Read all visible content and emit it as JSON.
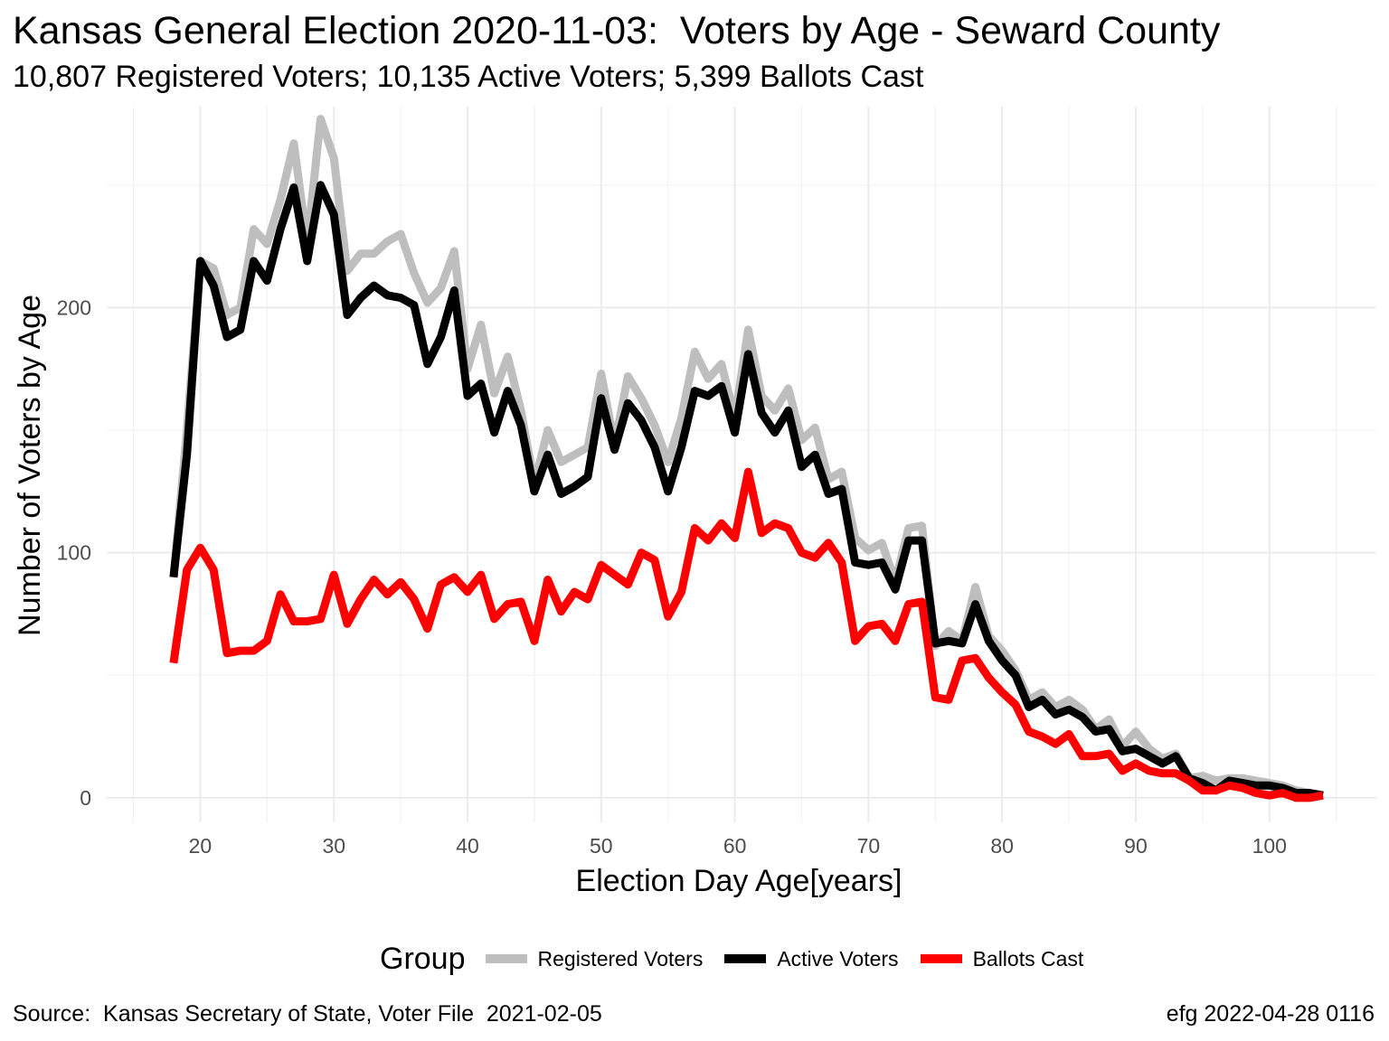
{
  "title": "Kansas General Election 2020-11-03:  Voters by Age - Seward County",
  "subtitle": "10,807 Registered Voters; 10,135 Active Voters; 5,399 Ballots Cast",
  "caption_left": "Source:  Kansas Secretary of State, Voter File  2021-02-05",
  "caption_right": "efg 2022-04-28 0116",
  "legend": {
    "title": "Group"
  },
  "chart_data": {
    "type": "line",
    "xlabel": "Election Day Age[years]",
    "ylabel": "Number of Voters by Age",
    "xlim": [
      13,
      108
    ],
    "ylim": [
      -10,
      282
    ],
    "xticks": [
      20,
      30,
      40,
      50,
      60,
      70,
      80,
      90,
      100
    ],
    "yticks": [
      0,
      100,
      200
    ],
    "grid": true,
    "legend_position": "bottom",
    "x": [
      18,
      19,
      20,
      21,
      22,
      23,
      24,
      25,
      26,
      27,
      28,
      29,
      30,
      31,
      32,
      33,
      34,
      35,
      36,
      37,
      38,
      39,
      40,
      41,
      42,
      43,
      44,
      45,
      46,
      47,
      48,
      49,
      50,
      51,
      52,
      53,
      54,
      55,
      56,
      57,
      58,
      59,
      60,
      61,
      62,
      63,
      64,
      65,
      66,
      67,
      68,
      69,
      70,
      71,
      72,
      73,
      74,
      75,
      76,
      77,
      78,
      79,
      80,
      81,
      82,
      83,
      84,
      85,
      86,
      87,
      88,
      89,
      90,
      91,
      92,
      93,
      94,
      95,
      96,
      97,
      98,
      99,
      100,
      101,
      102,
      103,
      104
    ],
    "series": [
      {
        "name": "Registered Voters",
        "color": "#bebebe",
        "values": [
          90,
          150,
          219,
          216,
          197,
          200,
          232,
          226,
          244,
          267,
          226,
          277,
          261,
          215,
          222,
          222,
          227,
          230,
          214,
          202,
          208,
          223,
          175,
          193,
          165,
          180,
          158,
          128,
          150,
          137,
          140,
          143,
          173,
          144,
          172,
          163,
          152,
          137,
          155,
          182,
          171,
          177,
          155,
          191,
          164,
          158,
          167,
          146,
          151,
          130,
          133,
          106,
          101,
          104,
          88,
          110,
          111,
          62,
          68,
          64,
          86,
          66,
          60,
          52,
          40,
          43,
          37,
          40,
          36,
          28,
          32,
          21,
          27,
          20,
          16,
          18,
          8,
          9,
          7,
          8,
          8,
          7,
          6,
          5,
          3,
          2,
          1
        ]
      },
      {
        "name": "Active Voters",
        "color": "#000000",
        "values": [
          90,
          140,
          219,
          209,
          188,
          191,
          219,
          211,
          232,
          249,
          219,
          250,
          238,
          197,
          204,
          209,
          205,
          204,
          201,
          177,
          188,
          207,
          164,
          169,
          149,
          166,
          152,
          125,
          140,
          124,
          127,
          131,
          163,
          142,
          161,
          154,
          143,
          125,
          143,
          166,
          164,
          168,
          149,
          181,
          157,
          149,
          158,
          135,
          140,
          124,
          126,
          96,
          95,
          96,
          85,
          105,
          105,
          63,
          64,
          63,
          79,
          64,
          56,
          50,
          37,
          40,
          34,
          36,
          33,
          27,
          28,
          19,
          20,
          17,
          14,
          17,
          8,
          6,
          3,
          7,
          6,
          5,
          5,
          4,
          2,
          2,
          1
        ]
      },
      {
        "name": "Ballots Cast",
        "color": "#ff0000",
        "values": [
          55,
          93,
          102,
          93,
          59,
          60,
          60,
          64,
          83,
          72,
          72,
          73,
          91,
          71,
          81,
          89,
          83,
          88,
          81,
          69,
          87,
          90,
          84,
          91,
          73,
          79,
          80,
          64,
          89,
          76,
          84,
          81,
          95,
          91,
          87,
          100,
          97,
          74,
          84,
          110,
          105,
          112,
          106,
          133,
          108,
          112,
          110,
          100,
          98,
          104,
          96,
          64,
          70,
          71,
          64,
          79,
          80,
          41,
          40,
          56,
          57,
          49,
          43,
          38,
          27,
          25,
          22,
          26,
          17,
          17,
          18,
          11,
          14,
          11,
          10,
          10,
          7,
          3,
          3,
          5,
          4,
          2,
          1,
          2,
          0,
          0,
          1
        ]
      }
    ]
  }
}
